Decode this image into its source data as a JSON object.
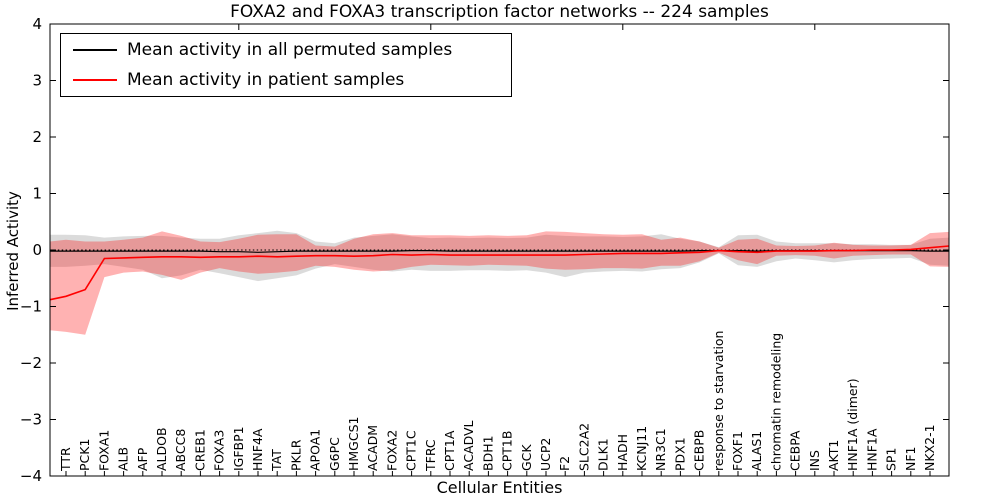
{
  "title": "FOXA2 and FOXA3 transcription factor networks -- 224 samples",
  "chart_data": {
    "type": "line",
    "title": "FOXA2 and FOXA3 transcription factor networks -- 224 samples",
    "xlabel": "Cellular Entities",
    "ylabel": "Inferred Activity",
    "ylim": [
      -4,
      4
    ],
    "yticks": [
      4,
      3,
      2,
      1,
      0,
      -1,
      -2,
      -3,
      -4
    ],
    "grid": false,
    "legend_position": "upper left",
    "zero_line_value": 0,
    "top_tick_indices": [
      9,
      19,
      29,
      39
    ],
    "categories": [
      "TTR",
      "PCK1",
      "FOXA1",
      "ALB",
      "AFP",
      "ALDOB",
      "ABCC8",
      "CREB1",
      "FOXA3",
      "IGFBP1",
      "HNF4A",
      "TAT",
      "PKLR",
      "APOA1",
      "G6PC",
      "HMGCS1",
      "ACADM",
      "FOXA2",
      "CPT1C",
      "TFRC",
      "CPT1A",
      "ACADVL",
      "BDH1",
      "CPT1B",
      "GCK",
      "UCP2",
      "F2",
      "SLC2A2",
      "DLK1",
      "HADH",
      "KCNJ11",
      "NR3C1",
      "PDX1",
      "CEBPB",
      "response to starvation",
      "FOXF1",
      "ALAS1",
      "chromatin remodeling",
      "CEBPA",
      "INS",
      "AKT1",
      "HNF1A (dimer)",
      "HNF1A",
      "SP1",
      "NF1",
      "NKX2-1"
    ],
    "series": [
      {
        "name": "Mean activity in all permuted samples",
        "color": "#000000",
        "band_color": "rgba(0,0,0,0.14)",
        "values": [
          -0.02,
          -0.02,
          -0.02,
          -0.02,
          -0.02,
          -0.02,
          -0.02,
          -0.02,
          -0.03,
          -0.03,
          -0.04,
          -0.03,
          -0.02,
          -0.02,
          -0.02,
          -0.02,
          -0.02,
          -0.02,
          -0.01,
          -0.01,
          -0.02,
          -0.02,
          -0.02,
          -0.02,
          -0.02,
          -0.02,
          -0.02,
          -0.02,
          -0.02,
          -0.02,
          -0.02,
          -0.02,
          -0.02,
          -0.01,
          -0.01,
          -0.01,
          -0.02,
          -0.01,
          -0.01,
          -0.01,
          -0.01,
          -0.01,
          -0.01,
          -0.01,
          -0.01,
          -0.02
        ],
        "band_hi": [
          0.27,
          0.26,
          0.22,
          0.24,
          0.25,
          0.25,
          0.22,
          0.2,
          0.2,
          0.26,
          0.3,
          0.34,
          0.3,
          0.15,
          0.12,
          0.22,
          0.25,
          0.28,
          0.24,
          0.21,
          0.22,
          0.21,
          0.22,
          0.21,
          0.22,
          0.27,
          0.25,
          0.24,
          0.24,
          0.23,
          0.24,
          0.28,
          0.2,
          0.15,
          0.05,
          0.26,
          0.27,
          0.15,
          0.12,
          0.12,
          0.12,
          0.1,
          0.1,
          0.09,
          0.09,
          0.2
        ],
        "band_lo": [
          -0.3,
          -0.28,
          -0.25,
          -0.3,
          -0.35,
          -0.5,
          -0.45,
          -0.35,
          -0.41,
          -0.48,
          -0.55,
          -0.5,
          -0.45,
          -0.33,
          -0.25,
          -0.3,
          -0.35,
          -0.38,
          -0.35,
          -0.37,
          -0.37,
          -0.36,
          -0.36,
          -0.37,
          -0.36,
          -0.4,
          -0.48,
          -0.4,
          -0.38,
          -0.37,
          -0.38,
          -0.34,
          -0.32,
          -0.22,
          -0.06,
          -0.27,
          -0.3,
          -0.2,
          -0.15,
          -0.18,
          -0.22,
          -0.18,
          -0.16,
          -0.15,
          -0.14,
          -0.26
        ],
        "edge_left": {
          "mean": -0.02,
          "hi": 0.27,
          "lo": -0.3
        },
        "edge_right": {
          "mean": -0.02,
          "hi": 0.22,
          "lo": -0.28
        }
      },
      {
        "name": "Mean activity in patient samples",
        "color": "#ff0000",
        "band_color": "rgba(255,0,0,0.30)",
        "values": [
          -0.82,
          -0.7,
          -0.15,
          -0.14,
          -0.13,
          -0.12,
          -0.12,
          -0.13,
          -0.12,
          -0.12,
          -0.11,
          -0.12,
          -0.11,
          -0.1,
          -0.1,
          -0.11,
          -0.1,
          -0.08,
          -0.09,
          -0.08,
          -0.09,
          -0.09,
          -0.09,
          -0.09,
          -0.09,
          -0.09,
          -0.09,
          -0.08,
          -0.07,
          -0.06,
          -0.06,
          -0.06,
          -0.05,
          -0.04,
          -0.01,
          -0.03,
          -0.04,
          -0.02,
          -0.02,
          -0.02,
          -0.01,
          -0.01,
          0.0,
          0.0,
          0.01,
          0.04
        ],
        "band_hi": [
          0.18,
          0.15,
          0.15,
          0.18,
          0.22,
          0.33,
          0.25,
          0.15,
          0.14,
          0.2,
          0.27,
          0.28,
          0.28,
          0.08,
          0.06,
          0.2,
          0.28,
          0.3,
          0.26,
          0.26,
          0.26,
          0.25,
          0.26,
          0.25,
          0.26,
          0.33,
          0.32,
          0.3,
          0.28,
          0.27,
          0.28,
          0.18,
          0.22,
          0.15,
          0.04,
          0.18,
          0.2,
          0.08,
          0.07,
          0.08,
          0.13,
          0.09,
          0.08,
          0.08,
          0.09,
          0.3
        ],
        "band_lo": [
          -1.45,
          -1.5,
          -0.48,
          -0.4,
          -0.38,
          -0.44,
          -0.53,
          -0.4,
          -0.32,
          -0.38,
          -0.42,
          -0.4,
          -0.37,
          -0.28,
          -0.3,
          -0.35,
          -0.38,
          -0.36,
          -0.3,
          -0.26,
          -0.27,
          -0.28,
          -0.26,
          -0.27,
          -0.28,
          -0.33,
          -0.35,
          -0.34,
          -0.32,
          -0.32,
          -0.33,
          -0.28,
          -0.28,
          -0.2,
          -0.05,
          -0.18,
          -0.25,
          -0.1,
          -0.09,
          -0.1,
          -0.15,
          -0.1,
          -0.09,
          -0.08,
          -0.08,
          -0.29
        ],
        "edge_left": {
          "mean": -0.88,
          "hi": 0.15,
          "lo": -1.42
        },
        "edge_right": {
          "mean": 0.07,
          "hi": 0.32,
          "lo": -0.3
        }
      }
    ]
  }
}
